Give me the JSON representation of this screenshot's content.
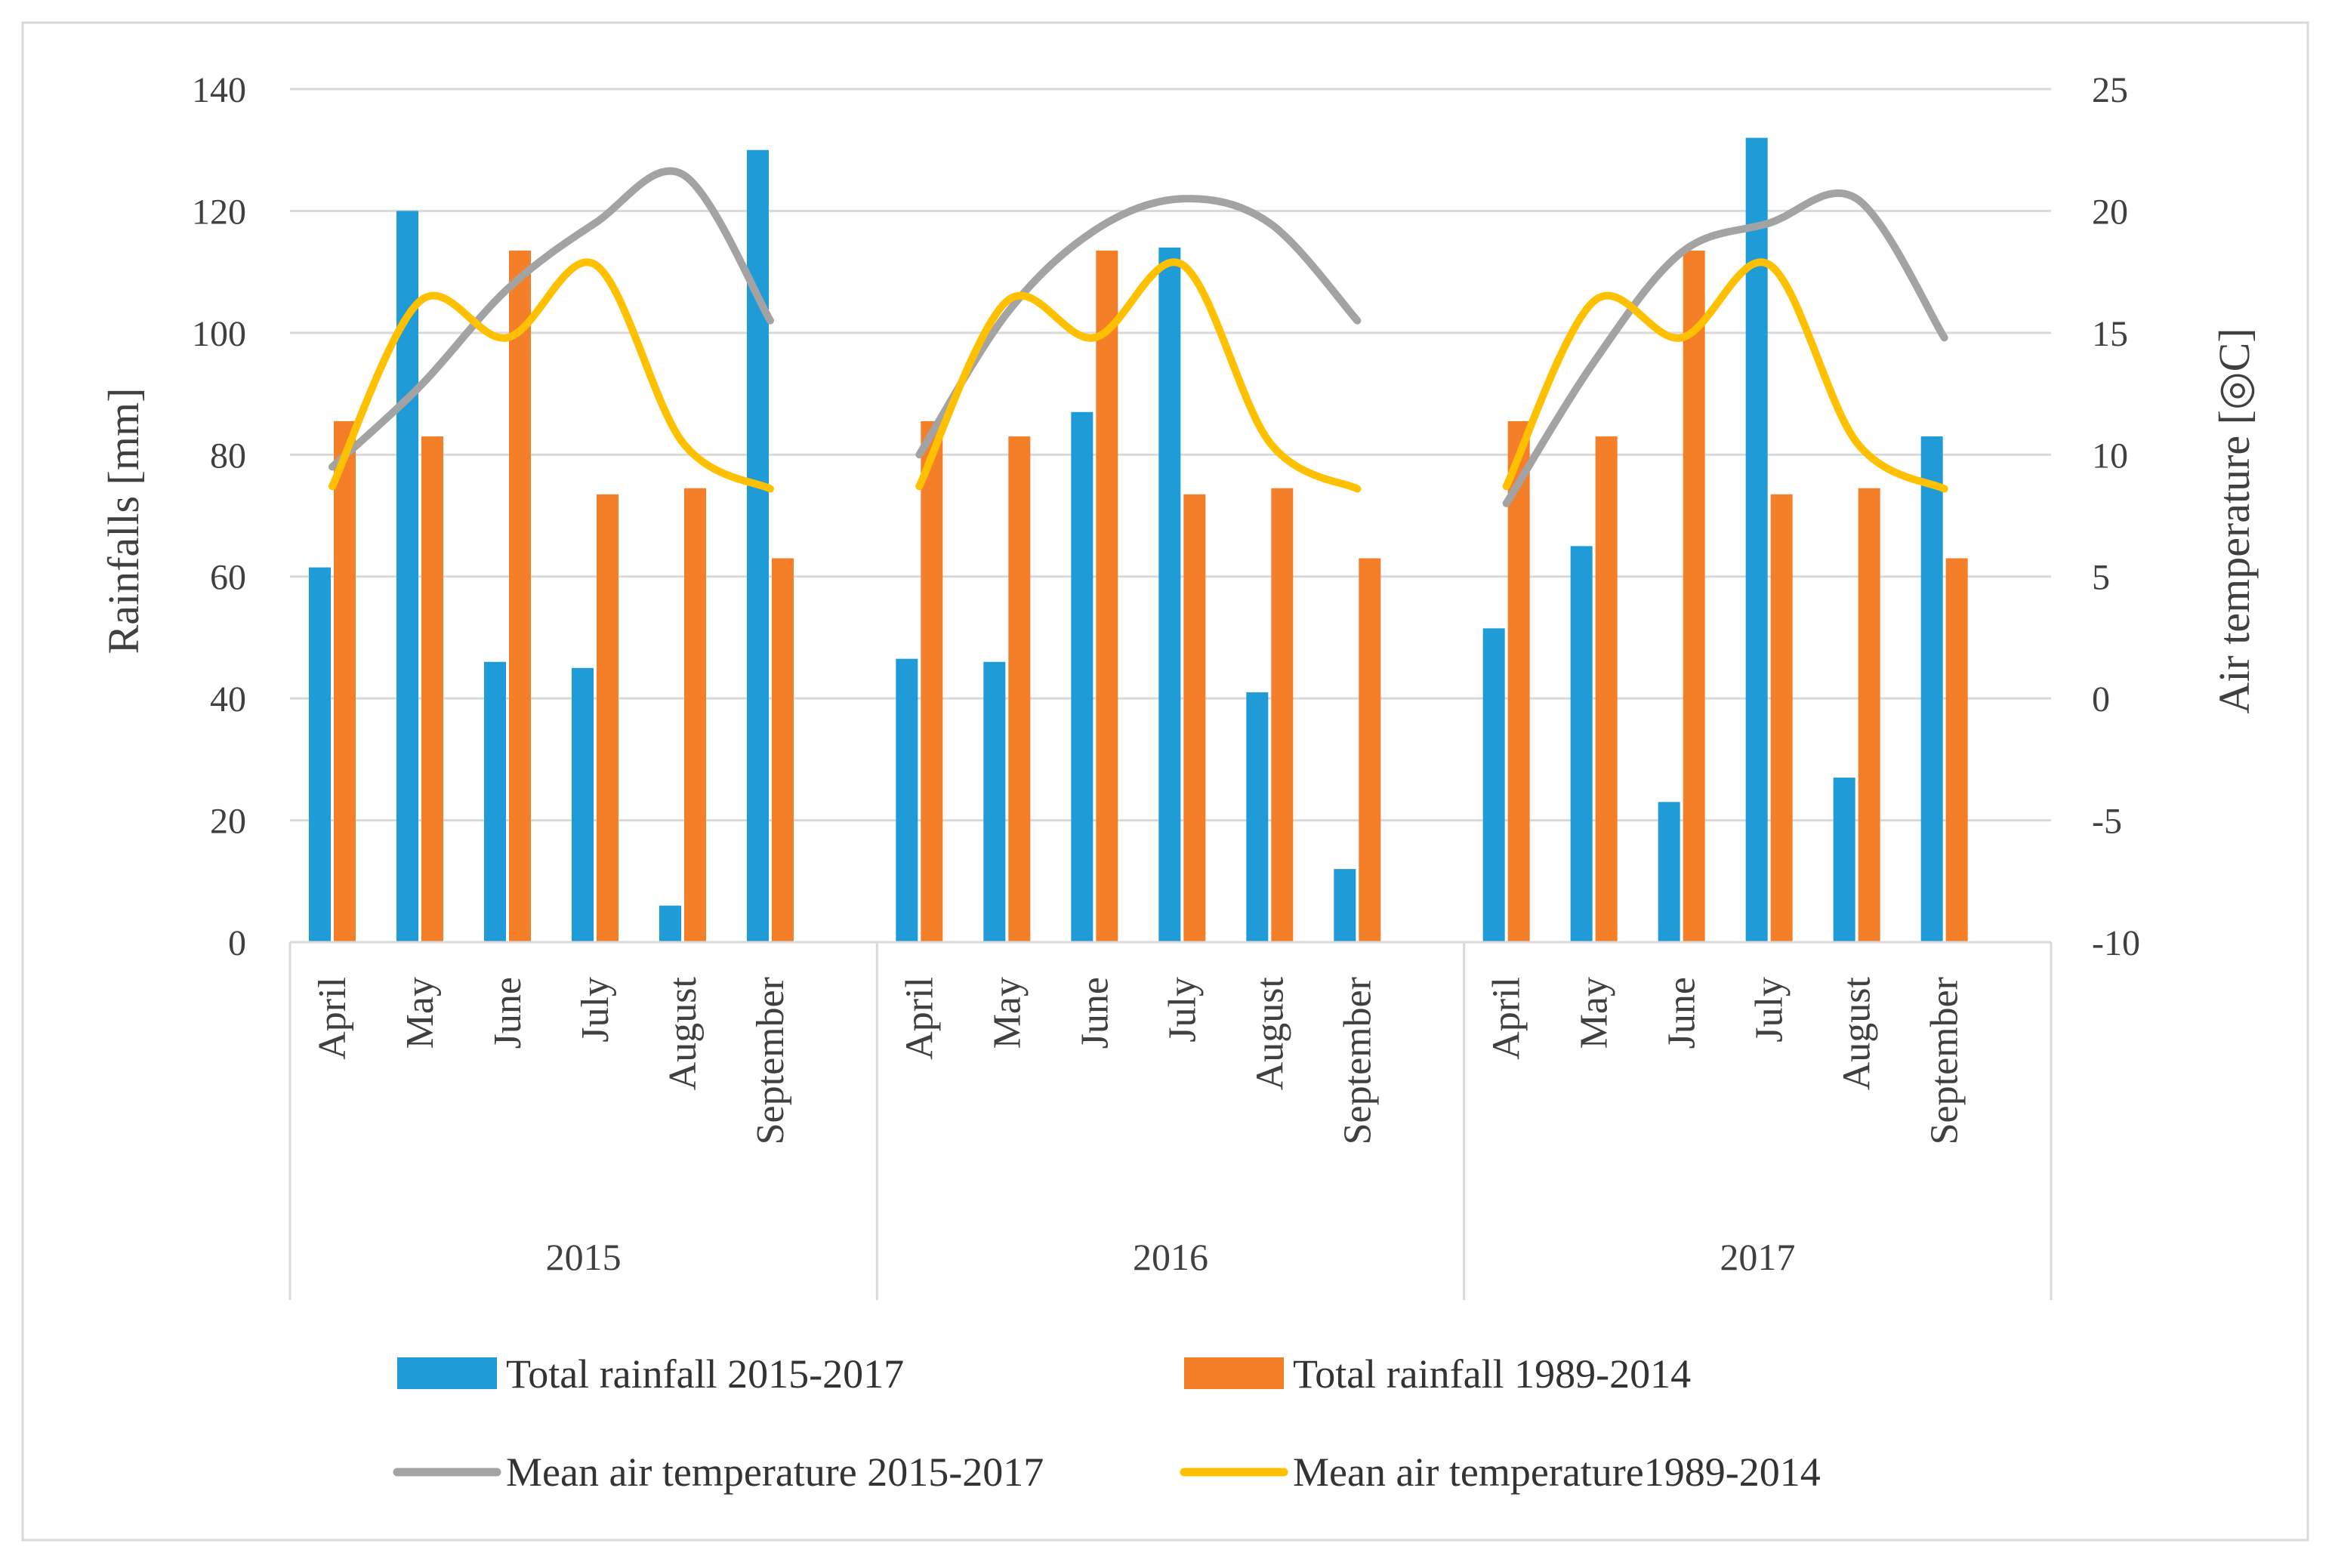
{
  "chart_data": {
    "type": "bar",
    "title": "",
    "groups": [
      {
        "label": "2015",
        "months": [
          "April",
          "May",
          "June",
          "July",
          "August",
          "September"
        ]
      },
      {
        "label": "2016",
        "months": [
          "April",
          "May",
          "June",
          "July",
          "August",
          "September"
        ]
      },
      {
        "label": "2017",
        "months": [
          "April",
          "May",
          "June",
          "July",
          "August",
          "September"
        ]
      }
    ],
    "ylabel_left": "Rainfalls [mm]",
    "ylabel_right": "Air temperature [◎C]",
    "ylim_left": [
      0,
      140
    ],
    "ylim_right": [
      -10,
      25
    ],
    "yticks_left": [
      0,
      20,
      40,
      60,
      80,
      100,
      120,
      140
    ],
    "yticks_right": [
      -10,
      -5,
      0,
      5,
      10,
      15,
      20,
      25
    ],
    "grid": true,
    "legend_position": "bottom",
    "series": [
      {
        "name": "Total rainfall 2015-2017",
        "kind": "bar",
        "axis": "left",
        "color": "#1f9bd8",
        "values": [
          61.5,
          120,
          46,
          45,
          6,
          130,
          46.5,
          46,
          87,
          114,
          41,
          12,
          51.5,
          65,
          23,
          132,
          27,
          83
        ]
      },
      {
        "name": "Total rainfall 1989-2014",
        "kind": "bar",
        "axis": "left",
        "color": "#f57f29",
        "values": [
          85.5,
          83,
          113.5,
          73.5,
          74.5,
          63,
          85.5,
          83,
          113.5,
          73.5,
          74.5,
          63,
          85.5,
          83,
          113.5,
          73.5,
          74.5,
          63
        ]
      },
      {
        "name": "Mean air temperature 2015-2017",
        "kind": "line",
        "axis": "right",
        "color": "#a3a3a3",
        "segments": [
          [
            9.5,
            12.8,
            16.8,
            19.5,
            21.5,
            15.5
          ],
          [
            10,
            15.8,
            19.2,
            20.5,
            19.5,
            15.5
          ],
          [
            8,
            13.8,
            18.3,
            19.5,
            20.5,
            14.8
          ]
        ]
      },
      {
        "name": "Mean air temperature1989-2014",
        "kind": "line",
        "axis": "right",
        "color": "#ffc000",
        "segments": [
          [
            8.7,
            16.3,
            14.8,
            17.8,
            10.5,
            8.6
          ],
          [
            8.7,
            16.3,
            14.8,
            17.8,
            10.5,
            8.6
          ],
          [
            8.7,
            16.3,
            14.8,
            17.8,
            10.5,
            8.6
          ]
        ]
      }
    ]
  }
}
